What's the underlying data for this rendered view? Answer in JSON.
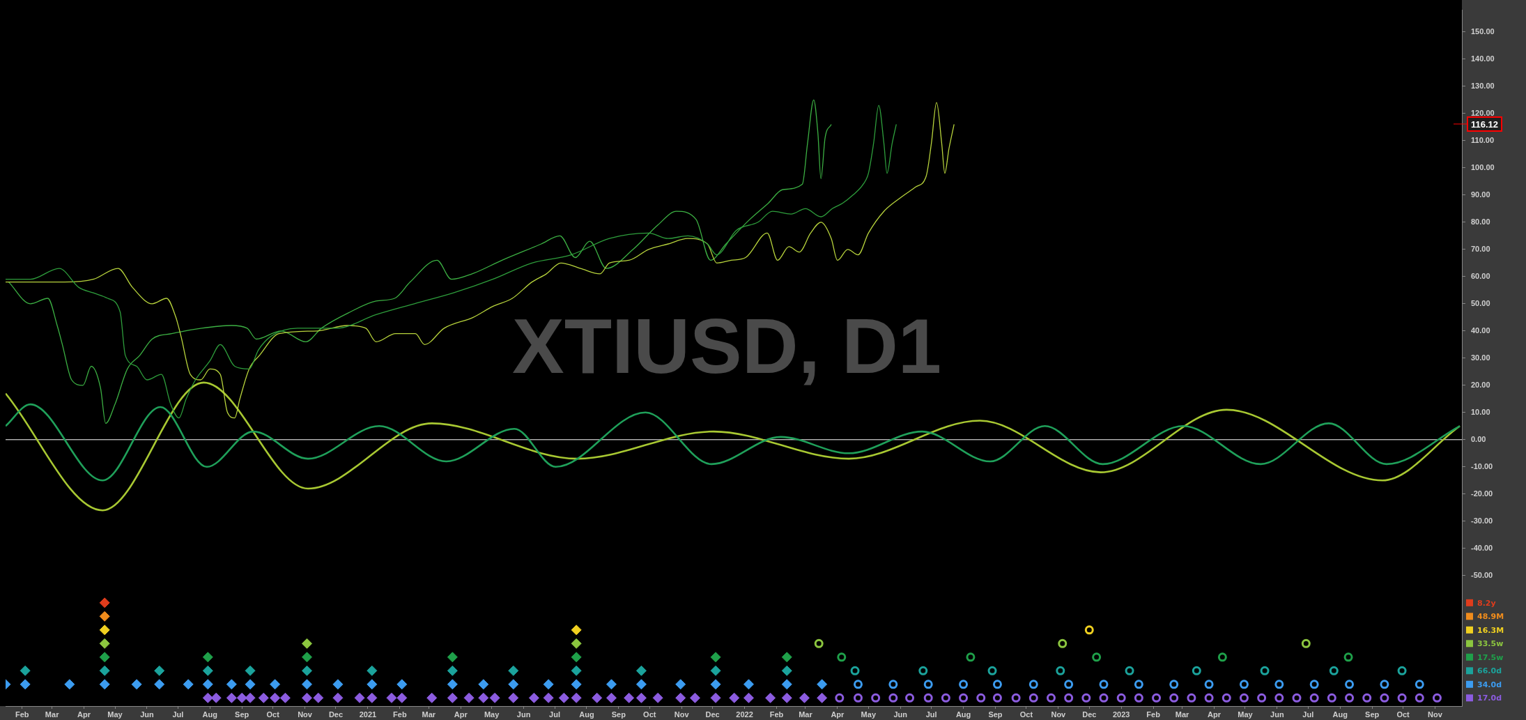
{
  "chart_data": {
    "type": "line",
    "title": "XTIUSD, D1",
    "legend": "right",
    "xlim": [
      "2020-01-16",
      "2023-11-27"
    ],
    "ylim": [
      -98,
      158
    ],
    "xticks": [
      {
        "value": "2020-02",
        "label": "Feb"
      },
      {
        "value": "2020-03",
        "label": "Mar"
      },
      {
        "value": "2020-04",
        "label": "Apr"
      },
      {
        "value": "2020-05",
        "label": "May"
      },
      {
        "value": "2020-06",
        "label": "Jun"
      },
      {
        "value": "2020-07",
        "label": "Jul"
      },
      {
        "value": "2020-08",
        "label": "Aug"
      },
      {
        "value": "2020-09",
        "label": "Sep"
      },
      {
        "value": "2020-10",
        "label": "Oct"
      },
      {
        "value": "2020-11",
        "label": "Nov"
      },
      {
        "value": "2020-12",
        "label": "Dec"
      },
      {
        "value": "2021-01",
        "label": "2021"
      },
      {
        "value": "2021-02",
        "label": "Feb"
      },
      {
        "value": "2021-03",
        "label": "Mar"
      },
      {
        "value": "2021-04",
        "label": "Apr"
      },
      {
        "value": "2021-05",
        "label": "May"
      },
      {
        "value": "2021-06",
        "label": "Jun"
      },
      {
        "value": "2021-07",
        "label": "Jul"
      },
      {
        "value": "2021-08",
        "label": "Aug"
      },
      {
        "value": "2021-09",
        "label": "Sep"
      },
      {
        "value": "2021-10",
        "label": "Oct"
      },
      {
        "value": "2021-11",
        "label": "Nov"
      },
      {
        "value": "2021-12",
        "label": "Dec"
      },
      {
        "value": "2022-01",
        "label": "2022"
      },
      {
        "value": "2022-02",
        "label": "Feb"
      },
      {
        "value": "2022-03",
        "label": "Mar"
      },
      {
        "value": "2022-04",
        "label": "Apr"
      },
      {
        "value": "2022-05",
        "label": "May"
      },
      {
        "value": "2022-06",
        "label": "Jun"
      },
      {
        "value": "2022-07",
        "label": "Jul"
      },
      {
        "value": "2022-08",
        "label": "Aug"
      },
      {
        "value": "2022-09",
        "label": "Sep"
      },
      {
        "value": "2022-10",
        "label": "Oct"
      },
      {
        "value": "2022-11",
        "label": "Nov"
      },
      {
        "value": "2022-12",
        "label": "Dec"
      },
      {
        "value": "2023-01",
        "label": "2023"
      },
      {
        "value": "2023-02",
        "label": "Feb"
      },
      {
        "value": "2023-03",
        "label": "Mar"
      },
      {
        "value": "2023-04",
        "label": "Apr"
      },
      {
        "value": "2023-05",
        "label": "May"
      },
      {
        "value": "2023-06",
        "label": "Jun"
      },
      {
        "value": "2023-07",
        "label": "Jul"
      },
      {
        "value": "2023-08",
        "label": "Aug"
      },
      {
        "value": "2023-09",
        "label": "Sep"
      },
      {
        "value": "2023-10",
        "label": "Oct"
      },
      {
        "value": "2023-11",
        "label": "Nov"
      }
    ],
    "yticks": [
      {
        "value": -50,
        "label": "-50.00"
      },
      {
        "value": -40,
        "label": "-40.00"
      },
      {
        "value": -30,
        "label": "-30.00"
      },
      {
        "value": -20,
        "label": "-20.00"
      },
      {
        "value": -10,
        "label": "-10.00"
      },
      {
        "value": 0,
        "label": "0.00"
      },
      {
        "value": 10,
        "label": "10.00"
      },
      {
        "value": 20,
        "label": "20.00"
      },
      {
        "value": 30,
        "label": "30.00"
      },
      {
        "value": 40,
        "label": "40.00"
      },
      {
        "value": 50,
        "label": "50.00"
      },
      {
        "value": 60,
        "label": "60.00"
      },
      {
        "value": 70,
        "label": "70.00"
      },
      {
        "value": 80,
        "label": "80.00"
      },
      {
        "value": 90,
        "label": "90.00"
      },
      {
        "value": 100,
        "label": "100.00"
      },
      {
        "value": 110,
        "label": "110.00"
      },
      {
        "value": 120,
        "label": "120.00"
      },
      {
        "value": 130,
        "label": "130.00"
      },
      {
        "value": 140,
        "label": "140.00"
      },
      {
        "value": 150,
        "label": "150.00"
      }
    ],
    "ref_lines": [
      {
        "axis": "y",
        "value": 0,
        "color": "#ffffff"
      },
      {
        "axis": "y",
        "value": 116.12,
        "label": "116.12",
        "color": "#ff0000"
      }
    ],
    "series": [
      {
        "color": "#2e9e3c",
        "marker": "none",
        "x": [
          "2020-01-16",
          "2020-02-09",
          "2020-03-08",
          "2020-03-27",
          "2020-04-10",
          "2020-04-24",
          "2020-05-06",
          "2020-05-11",
          "2020-05-22",
          "2020-06-01",
          "2020-06-15",
          "2020-06-24",
          "2020-07-02",
          "2020-07-09",
          "2020-07-18",
          "2020-08-01",
          "2020-08-11",
          "2020-08-25",
          "2020-09-08",
          "2020-09-17",
          "2020-09-29",
          "2020-10-25",
          "2020-12-02",
          "2021-01-09",
          "2021-02-15",
          "2021-03-25",
          "2021-05-02",
          "2021-06-09",
          "2021-07-17",
          "2021-08-23",
          "2021-09-30",
          "2021-10-19",
          "2021-11-07",
          "2021-11-26",
          "2021-12-05",
          "2021-12-24",
          "2022-01-14",
          "2022-01-28",
          "2022-02-15",
          "2022-03-01",
          "2022-03-16",
          "2022-03-27",
          "2022-04-06",
          "2022-04-16",
          "2022-04-26",
          "2022-05-01",
          "2022-05-06",
          "2022-05-11",
          "2022-05-16",
          "2022-05-19",
          "2022-05-24",
          "2022-05-28"
        ],
        "values": [
          59,
          59,
          63,
          56,
          54,
          52,
          47,
          31,
          27,
          22,
          24,
          13,
          8,
          15,
          22,
          29,
          35,
          27,
          26,
          33,
          38,
          41,
          41,
          46,
          50,
          54,
          59,
          65,
          68,
          74,
          76,
          74,
          75,
          72,
          68,
          77,
          80,
          84,
          83,
          85,
          82,
          85,
          87,
          90,
          94,
          98,
          109,
          123,
          109,
          98,
          109,
          116
        ]
      },
      {
        "color": "#b8d43c",
        "marker": "none",
        "x": [
          "2020-01-16",
          "2020-03-13",
          "2020-04-10",
          "2020-05-04",
          "2020-05-18",
          "2020-06-06",
          "2020-06-20",
          "2020-06-29",
          "2020-07-04",
          "2020-07-13",
          "2020-07-23",
          "2020-08-01",
          "2020-08-11",
          "2020-08-18",
          "2020-08-25",
          "2020-08-30",
          "2020-09-08",
          "2020-09-18",
          "2020-10-07",
          "2020-11-13",
          "2020-12-12",
          "2020-12-30",
          "2021-01-09",
          "2021-01-28",
          "2021-02-16",
          "2021-02-25",
          "2021-03-16",
          "2021-04-13",
          "2021-05-02",
          "2021-05-21",
          "2021-06-09",
          "2021-06-23",
          "2021-07-07",
          "2021-07-26",
          "2021-08-14",
          "2021-08-23",
          "2021-09-11",
          "2021-09-30",
          "2021-10-19",
          "2021-11-07",
          "2021-11-26",
          "2021-12-05",
          "2021-12-19",
          "2022-01-02",
          "2022-01-23",
          "2022-02-02",
          "2022-02-13",
          "2022-02-23",
          "2022-03-06",
          "2022-03-16",
          "2022-03-26",
          "2022-04-01",
          "2022-04-11",
          "2022-04-21",
          "2022-05-01",
          "2022-05-16",
          "2022-06-01",
          "2022-06-16",
          "2022-06-26",
          "2022-07-01",
          "2022-07-06",
          "2022-07-11",
          "2022-07-14",
          "2022-07-18",
          "2022-07-23"
        ],
        "values": [
          58,
          58,
          59,
          63,
          56,
          50,
          52,
          45,
          38,
          24,
          22,
          26,
          24,
          10,
          8,
          15,
          26,
          31,
          39,
          40,
          42,
          41,
          36,
          39,
          39,
          35,
          41,
          45,
          49,
          52,
          58,
          61,
          65,
          63,
          61,
          65,
          66,
          70,
          72,
          74,
          72,
          65,
          66,
          67,
          76,
          66,
          71,
          69,
          76,
          80,
          74,
          66,
          70,
          68,
          76,
          84,
          89,
          93,
          97,
          109,
          124,
          109,
          98,
          107,
          116
        ]
      },
      {
        "color": "#3cb043",
        "marker": "none",
        "x": [
          "2020-01-19",
          "2020-02-09",
          "2020-02-26",
          "2020-03-06",
          "2020-03-11",
          "2020-03-20",
          "2020-03-31",
          "2020-04-08",
          "2020-04-17",
          "2020-04-22",
          "2020-05-01",
          "2020-05-13",
          "2020-05-25",
          "2020-06-06",
          "2020-06-25",
          "2020-07-24",
          "2020-08-22",
          "2020-09-06",
          "2020-09-15",
          "2020-10-09",
          "2020-11-02",
          "2020-11-17",
          "2020-12-15",
          "2021-01-09",
          "2021-01-27",
          "2021-02-11",
          "2021-03-09",
          "2021-03-23",
          "2021-04-12",
          "2021-05-11",
          "2021-06-18",
          "2021-07-06",
          "2021-07-21",
          "2021-08-04",
          "2021-08-20",
          "2021-09-15",
          "2021-10-09",
          "2021-10-27",
          "2021-11-15",
          "2021-11-29",
          "2021-12-14",
          "2022-01-06",
          "2022-01-24",
          "2022-02-07",
          "2022-02-26",
          "2022-03-03",
          "2022-03-09",
          "2022-03-13",
          "2022-03-16",
          "2022-03-20",
          "2022-03-26"
        ],
        "values": [
          58,
          50,
          52,
          42,
          35,
          22,
          20,
          27,
          19,
          6,
          13,
          26,
          31,
          37,
          39,
          41,
          42,
          41,
          37,
          40,
          36,
          41,
          47,
          51,
          52,
          58,
          66,
          59,
          61,
          66,
          72,
          75,
          67,
          73,
          63,
          70,
          79,
          84,
          81,
          66,
          72,
          81,
          87,
          92,
          94,
          109,
          125,
          113,
          96,
          111,
          116
        ]
      },
      {
        "color": "#1fa05a",
        "marker": "none",
        "x": [
          "2020-01-16",
          "2020-02-09",
          "2020-04-19",
          "2020-06-14",
          "2020-07-29",
          "2020-09-12",
          "2020-11-04",
          "2021-01-12",
          "2021-03-18",
          "2021-05-23",
          "2021-07-02",
          "2021-09-27",
          "2021-11-30",
          "2022-02-05",
          "2022-04-12",
          "2022-06-22",
          "2022-08-27",
          "2022-10-19",
          "2022-12-14",
          "2023-03-02",
          "2023-05-16",
          "2023-07-21",
          "2023-09-15",
          "2023-11-25"
        ],
        "values": [
          5,
          13,
          -15,
          12,
          -10,
          3,
          -7,
          5,
          -8,
          4,
          -10,
          10,
          -9,
          1,
          -5,
          3,
          -8,
          5,
          -9,
          5,
          -9,
          6,
          -9,
          5
        ]
      },
      {
        "color": "#a8c832",
        "marker": "none",
        "x": [
          "2020-01-16",
          "2020-04-19",
          "2020-07-26",
          "2020-11-04",
          "2021-03-04",
          "2021-07-23",
          "2021-12-02",
          "2022-04-12",
          "2022-08-17",
          "2022-12-12",
          "2023-04-13",
          "2023-09-11",
          "2023-11-25"
        ],
        "values": [
          17,
          -26,
          21,
          -18,
          6,
          -7,
          3,
          -7,
          7,
          -12,
          11,
          -15,
          5
        ]
      },
      {
        "type": "scatter",
        "name": "8.2y",
        "color": "#e03c1c",
        "marker": "diamond",
        "x": [
          "2020-04-21"
        ],
        "values": [
          -60
        ]
      },
      {
        "type": "scatter",
        "name": "48.9M",
        "color": "#f08c1c",
        "marker": "diamond",
        "x": [
          "2020-04-21"
        ],
        "values": [
          -65
        ]
      },
      {
        "type": "scatter",
        "name": "16.3M",
        "color": "#f0d020",
        "marker": "diamond",
        "x": [
          "2020-04-21",
          "2021-07-22"
        ],
        "values": [
          -70,
          -70
        ]
      },
      {
        "type": "scatter",
        "color": "#f0d020",
        "marker": "circle",
        "x": [
          "2022-12-01"
        ],
        "values": [
          -70
        ]
      },
      {
        "type": "scatter",
        "name": "33.5w",
        "color": "#8cc63f",
        "marker": "diamond",
        "x": [
          "2020-04-21",
          "2020-11-03",
          "2021-07-22"
        ],
        "values": [
          -75,
          -75,
          -75
        ]
      },
      {
        "type": "scatter",
        "color": "#8cc63f",
        "marker": "circle",
        "x": [
          "2022-03-14",
          "2022-11-05",
          "2023-06-29"
        ],
        "values": [
          -75,
          -75,
          -75
        ]
      },
      {
        "type": "scatter",
        "name": "17.5w",
        "color": "#1fa04a",
        "marker": "diamond",
        "x": [
          "2020-04-21",
          "2020-07-30",
          "2020-11-03",
          "2021-03-24",
          "2021-07-22",
          "2021-12-04",
          "2022-02-11"
        ],
        "values": [
          -80,
          -80,
          -80,
          -80,
          -80,
          -80,
          -80
        ]
      },
      {
        "type": "scatter",
        "color": "#1fa04a",
        "marker": "circle",
        "x": [
          "2022-04-05",
          "2022-08-08",
          "2022-12-08",
          "2023-04-09",
          "2023-08-09"
        ],
        "values": [
          -80,
          -80,
          -80,
          -80,
          -80
        ]
      },
      {
        "type": "scatter",
        "name": "66.0d",
        "color": "#1ba39c",
        "marker": "diamond",
        "x": [
          "2020-02-04",
          "2020-04-21",
          "2020-06-13",
          "2020-07-30",
          "2020-09-09",
          "2020-11-03",
          "2021-01-05",
          "2021-03-24",
          "2021-05-22",
          "2021-07-22",
          "2021-09-23",
          "2021-12-04",
          "2022-02-11"
        ],
        "values": [
          -85,
          -85,
          -85,
          -85,
          -85,
          -85,
          -85,
          -85,
          -85,
          -85,
          -85,
          -85,
          -85
        ]
      },
      {
        "type": "scatter",
        "color": "#1ba39c",
        "marker": "circle",
        "x": [
          "2022-04-18",
          "2022-06-23",
          "2022-08-29",
          "2022-11-03",
          "2023-01-09",
          "2023-03-15",
          "2023-05-20",
          "2023-07-26",
          "2023-09-30"
        ],
        "values": [
          -85,
          -85,
          -85,
          -85,
          -85,
          -85,
          -85,
          -85,
          -85
        ]
      },
      {
        "type": "scatter",
        "name": "34.0d",
        "color": "#3c9cf0",
        "marker": "diamond",
        "x": [
          "2020-01-16",
          "2020-02-04",
          "2020-03-18",
          "2020-04-21",
          "2020-05-22",
          "2020-06-13",
          "2020-07-11",
          "2020-07-30",
          "2020-08-22",
          "2020-09-09",
          "2020-10-03",
          "2020-11-03",
          "2020-12-03",
          "2021-01-05",
          "2021-02-03",
          "2021-03-24",
          "2021-04-23",
          "2021-05-22",
          "2021-06-25",
          "2021-07-22",
          "2021-08-25",
          "2021-09-23",
          "2021-10-31",
          "2021-12-04",
          "2022-01-05",
          "2022-02-11",
          "2022-03-17"
        ],
        "values": [
          -90,
          -90,
          -90,
          -90,
          -90,
          -90,
          -90,
          -90,
          -90,
          -90,
          -90,
          -90,
          -90,
          -90,
          -90,
          -90,
          -90,
          -90,
          -90,
          -90,
          -90,
          -90,
          -90,
          -90,
          -90,
          -90,
          -90
        ]
      },
      {
        "type": "scatter",
        "color": "#3c9cf0",
        "marker": "circle",
        "x": [
          "2022-04-21",
          "2022-05-25",
          "2022-06-28",
          "2022-08-01",
          "2022-09-03",
          "2022-10-08",
          "2022-11-11",
          "2022-12-15",
          "2023-01-18",
          "2023-02-21",
          "2023-03-27",
          "2023-04-30",
          "2023-06-03",
          "2023-07-07",
          "2023-08-10",
          "2023-09-13",
          "2023-10-17"
        ],
        "values": [
          -90,
          -90,
          -90,
          -90,
          -90,
          -90,
          -90,
          -90,
          -90,
          -90,
          -90,
          -90,
          -90,
          -90,
          -90,
          -90,
          -90
        ]
      },
      {
        "type": "scatter",
        "name": "17.0d",
        "color": "#8c5ce0",
        "marker": "diamond",
        "x": [
          "2020-07-30",
          "2020-08-07",
          "2020-08-22",
          "2020-09-01",
          "2020-09-09",
          "2020-09-22",
          "2020-10-03",
          "2020-10-13",
          "2020-11-03",
          "2020-11-14",
          "2020-12-03",
          "2020-12-24",
          "2021-01-05",
          "2021-01-24",
          "2021-02-03",
          "2021-03-04",
          "2021-03-24",
          "2021-04-09",
          "2021-04-23",
          "2021-05-04",
          "2021-05-22",
          "2021-06-11",
          "2021-06-25",
          "2021-07-10",
          "2021-07-22",
          "2021-08-11",
          "2021-08-25",
          "2021-09-11",
          "2021-09-23",
          "2021-10-09",
          "2021-10-31",
          "2021-11-14",
          "2021-12-04",
          "2021-12-22",
          "2022-01-05",
          "2022-01-26",
          "2022-02-11",
          "2022-02-28",
          "2022-03-17"
        ],
        "values": [
          -95,
          -95,
          -95,
          -95,
          -95,
          -95,
          -95,
          -95,
          -95,
          -95,
          -95,
          -95,
          -95,
          -95,
          -95,
          -95,
          -95,
          -95,
          -95,
          -95,
          -95,
          -95,
          -95,
          -95,
          -95,
          -95,
          -95,
          -95,
          -95,
          -95,
          -95,
          -95,
          -95,
          -95,
          -95,
          -95,
          -95,
          -95,
          -95
        ]
      },
      {
        "type": "scatter",
        "color": "#8c5ce0",
        "marker": "circle",
        "x": [
          "2022-04-03",
          "2022-04-21",
          "2022-05-08",
          "2022-05-25",
          "2022-06-10",
          "2022-06-28",
          "2022-07-15",
          "2022-08-01",
          "2022-08-18",
          "2022-09-03",
          "2022-09-21",
          "2022-10-08",
          "2022-10-25",
          "2022-11-11",
          "2022-11-28",
          "2022-12-15",
          "2023-01-01",
          "2023-01-18",
          "2023-02-04",
          "2023-02-21",
          "2023-03-10",
          "2023-03-27",
          "2023-04-13",
          "2023-04-30",
          "2023-05-17",
          "2023-06-03",
          "2023-06-20",
          "2023-07-07",
          "2023-07-24",
          "2023-08-10",
          "2023-08-27",
          "2023-09-13",
          "2023-09-30",
          "2023-10-17",
          "2023-11-03"
        ],
        "values": [
          -95,
          -95,
          -95,
          -95,
          -95,
          -95,
          -95,
          -95,
          -95,
          -95,
          -95,
          -95,
          -95,
          -95,
          -95,
          -95,
          -95,
          -95,
          -95,
          -95,
          -95,
          -95,
          -95,
          -95,
          -95,
          -95,
          -95,
          -95,
          -95,
          -95,
          -95,
          -95,
          -95,
          -95,
          -95
        ]
      }
    ]
  }
}
